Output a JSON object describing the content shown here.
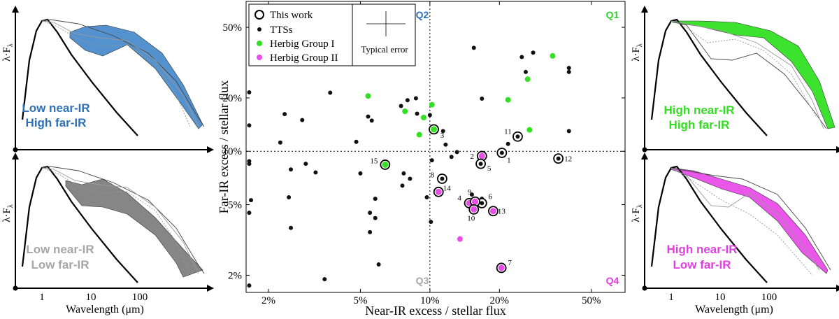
{
  "colors": {
    "blue": "#4a8ccc",
    "green": "#33e024",
    "gray": "#7f7f7f",
    "light_gray": "#a6a6a6",
    "magenta": "#e84de8",
    "tts": "#111111",
    "q_blue": "#2f72b8",
    "q_green": "#33cc33",
    "q_magenta": "#e040e0"
  },
  "sed_panels": {
    "ylabel": "λ·F",
    "ylabel_sub": "λ",
    "xlabel": "Wavelength (μm)",
    "xticks": [
      "1",
      "10",
      "100"
    ],
    "top_left": {
      "line1": "Low near-IR",
      "line2": "High far-IR"
    },
    "bottom_left": {
      "line1": "Low near-IR",
      "line2": "Low far-IR"
    },
    "top_right": {
      "line1": "High near-IR",
      "line2": "High far-IR"
    },
    "bottom_right": {
      "line1": "High near-IR",
      "line2": "Low far-IR"
    }
  },
  "chart_data": {
    "type": "scatter",
    "title": "",
    "xlabel": "Near-IR excess / stellar flux",
    "ylabel": "Far-IR excess / stellar flux",
    "xscale": "log",
    "yscale": "log",
    "xlim": [
      0.016,
      0.7
    ],
    "ylim": [
      0.016,
      0.7
    ],
    "xticks": [
      {
        "v": 0.02,
        "label": "2%"
      },
      {
        "v": 0.05,
        "label": "5%"
      },
      {
        "v": 0.1,
        "label": "10%"
      },
      {
        "v": 0.2,
        "label": "20%"
      },
      {
        "v": 0.5,
        "label": "50%"
      }
    ],
    "yticks": [
      {
        "v": 0.02,
        "label": "2%"
      },
      {
        "v": 0.05,
        "label": "5%"
      },
      {
        "v": 0.1,
        "label": "10%"
      },
      {
        "v": 0.2,
        "label": "20%"
      },
      {
        "v": 0.5,
        "label": "50%"
      }
    ],
    "divider_x": 0.1,
    "divider_y": 0.1,
    "quadrants": [
      {
        "label": "Q2",
        "position": "top-left-of-divider"
      },
      {
        "label": "Q1",
        "position": "top-right"
      },
      {
        "label": "Q3",
        "position": "bottom-left-of-divider"
      },
      {
        "label": "Q4",
        "position": "bottom-right"
      }
    ],
    "legend": {
      "position": "top-left",
      "entries": [
        {
          "label": "This work",
          "marker": "open-circle"
        },
        {
          "label": "TTSs",
          "marker": "black-dot"
        },
        {
          "label": "Herbig Group I",
          "marker": "green-dot"
        },
        {
          "label": "Herbig Group II",
          "marker": "magenta-dot"
        }
      ],
      "error_label": "Typical error"
    },
    "series": [
      {
        "name": "TTSs",
        "points": [
          [
            0.0165,
            0.0175
          ],
          [
            0.0165,
            0.045
          ],
          [
            0.0168,
            0.053
          ],
          [
            0.0165,
            0.085
          ],
          [
            0.0165,
            0.088
          ],
          [
            0.0165,
            0.14
          ],
          [
            0.0165,
            0.215
          ],
          [
            0.0225,
            0.112
          ],
          [
            0.0235,
            0.162
          ],
          [
            0.0245,
            0.055
          ],
          [
            0.025,
            0.079
          ],
          [
            0.025,
            0.037
          ],
          [
            0.028,
            0.15
          ],
          [
            0.029,
            0.085
          ],
          [
            0.032,
            0.076
          ],
          [
            0.035,
            0.019
          ],
          [
            0.037,
            0.214
          ],
          [
            0.048,
            0.113
          ],
          [
            0.05,
            0.075
          ],
          [
            0.054,
            0.157
          ],
          [
            0.055,
            0.035
          ],
          [
            0.055,
            0.045
          ],
          [
            0.056,
            0.149
          ],
          [
            0.058,
            0.054
          ],
          [
            0.058,
            0.042
          ],
          [
            0.06,
            0.023
          ],
          [
            0.075,
            0.18
          ],
          [
            0.076,
            0.064
          ],
          [
            0.077,
            0.075
          ],
          [
            0.08,
            0.194
          ],
          [
            0.082,
            0.07
          ],
          [
            0.087,
            0.199
          ],
          [
            0.088,
            0.163
          ],
          [
            0.097,
            0.055
          ],
          [
            0.1,
            0.16
          ],
          [
            0.102,
            0.089
          ],
          [
            0.101,
            0.04
          ],
          [
            0.114,
            0.13
          ],
          [
            0.117,
            0.109
          ],
          [
            0.124,
            0.093
          ],
          [
            0.131,
            0.099
          ],
          [
            0.152,
            0.057
          ],
          [
            0.155,
            0.383
          ],
          [
            0.168,
            0.054
          ],
          [
            0.168,
            0.198
          ],
          [
            0.218,
            0.11
          ],
          [
            0.25,
            0.34
          ],
          [
            0.26,
            0.28
          ],
          [
            0.28,
            0.36
          ],
          [
            0.4,
            0.295
          ],
          [
            0.4,
            0.28
          ],
          [
            0.4,
            0.13
          ]
        ]
      },
      {
        "name": "Herbig Group I",
        "points": [
          [
            0.054,
            0.205
          ],
          [
            0.078,
            0.168
          ],
          [
            0.09,
            0.124
          ],
          [
            0.094,
            0.155
          ],
          [
            0.102,
            0.183
          ],
          [
            0.218,
            0.195
          ],
          [
            0.265,
            0.255
          ],
          [
            0.27,
            0.132
          ],
          [
            0.34,
            0.345
          ]
        ]
      },
      {
        "name": "Herbig Group II",
        "points": [
          [
            0.135,
            0.032
          ]
        ]
      },
      {
        "name": "This work",
        "points": [
          {
            "id": "1",
            "x": 0.205,
            "y": 0.098,
            "fill": "tts"
          },
          {
            "id": "2",
            "x": 0.168,
            "y": 0.094,
            "fill": "magenta"
          },
          {
            "id": "3",
            "x": 0.104,
            "y": 0.133,
            "fill": "green"
          },
          {
            "id": "4",
            "x": 0.148,
            "y": 0.051,
            "fill": "magenta"
          },
          {
            "id": "5",
            "x": 0.166,
            "y": 0.085,
            "fill": "tts"
          },
          {
            "id": "6",
            "x": 0.168,
            "y": 0.051,
            "fill": "tts"
          },
          {
            "id": "7",
            "x": 0.204,
            "y": 0.022,
            "fill": "magenta"
          },
          {
            "id": "8",
            "x": 0.113,
            "y": 0.07,
            "fill": "tts"
          },
          {
            "id": "9",
            "x": 0.157,
            "y": 0.052,
            "fill": "magenta"
          },
          {
            "id": "10",
            "x": 0.155,
            "y": 0.047,
            "fill": "magenta"
          },
          {
            "id": "11",
            "x": 0.24,
            "y": 0.121,
            "fill": "tts"
          },
          {
            "id": "12",
            "x": 0.36,
            "y": 0.091,
            "fill": "tts"
          },
          {
            "id": "13",
            "x": 0.188,
            "y": 0.046,
            "fill": "magenta"
          },
          {
            "id": "14",
            "x": 0.109,
            "y": 0.059,
            "fill": "magenta"
          },
          {
            "id": "15",
            "x": 0.064,
            "y": 0.084,
            "fill": "green"
          }
        ]
      }
    ]
  }
}
